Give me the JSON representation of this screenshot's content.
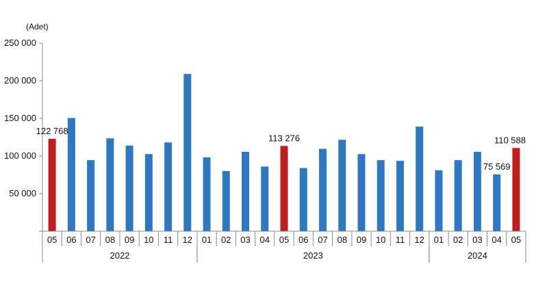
{
  "chart_data": {
    "type": "bar",
    "unit_label": "(Adet)",
    "title": "",
    "xlabel": "",
    "ylabel": "",
    "ylim": [
      0,
      250000
    ],
    "yticks": [
      0,
      50000,
      100000,
      150000,
      200000,
      250000
    ],
    "ytick_labels": [
      "",
      "50 000",
      "100 000",
      "150 000",
      "200 000",
      "250 000"
    ],
    "grid": false,
    "legend": "none",
    "colors": {
      "default": "#2E78C2",
      "highlight": "#BE1E1E",
      "axis": "#888888"
    },
    "categories": [
      "05",
      "06",
      "07",
      "08",
      "09",
      "10",
      "11",
      "12",
      "01",
      "02",
      "03",
      "04",
      "05",
      "06",
      "07",
      "08",
      "09",
      "10",
      "11",
      "12",
      "01",
      "02",
      "03",
      "04",
      "05"
    ],
    "values": [
      122768,
      150500,
      94500,
      123500,
      113800,
      102500,
      118000,
      209000,
      98200,
      80000,
      105500,
      86000,
      113276,
      84000,
      109500,
      121500,
      102500,
      94500,
      93500,
      139000,
      81000,
      94500,
      105500,
      75569,
      110588
    ],
    "highlight": [
      true,
      false,
      false,
      false,
      false,
      false,
      false,
      false,
      false,
      false,
      false,
      false,
      true,
      false,
      false,
      false,
      false,
      false,
      false,
      false,
      false,
      false,
      false,
      false,
      true
    ],
    "data_labels": [
      {
        "index": 0,
        "text": "122 768"
      },
      {
        "index": 12,
        "text": "113 276"
      },
      {
        "index": 23,
        "text": "75 569"
      },
      {
        "index": 24,
        "text": "110 588"
      }
    ],
    "year_groups": [
      {
        "label": "2022",
        "start": 0,
        "end": 7
      },
      {
        "label": "2023",
        "start": 8,
        "end": 19
      },
      {
        "label": "2024",
        "start": 20,
        "end": 24
      }
    ]
  }
}
